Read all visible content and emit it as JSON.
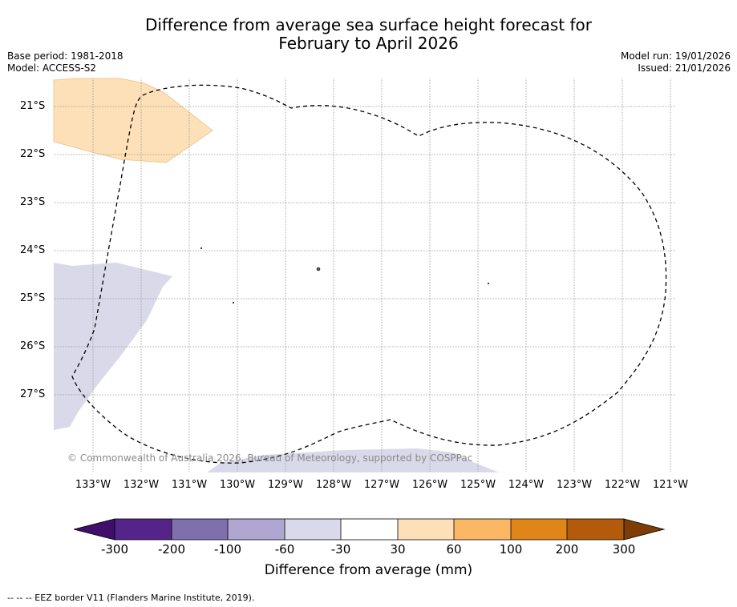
{
  "title": {
    "line1": "Difference from average sea surface height forecast for",
    "line2": "February to April 2026"
  },
  "meta": {
    "base_period": "Base period: 1981-2018",
    "model": "Model: ACCESS-S2",
    "model_run": "Model run: 19/01/2026",
    "issued": "Issued: 21/01/2026"
  },
  "map": {
    "lat_labels": [
      "21°S",
      "22°S",
      "23°S",
      "24°S",
      "25°S",
      "26°S",
      "27°S"
    ],
    "lon_labels": [
      "133°W",
      "132°W",
      "131°W",
      "130°W",
      "129°W",
      "128°W",
      "127°W",
      "126°W",
      "125°W",
      "124°W",
      "123°W",
      "122°W",
      "121°W"
    ],
    "copyright": "© Commonwealth of Australia 2026, Bureau of Meteorology, supported by COSPPac",
    "region_colors": {
      "positive_30_60": "#fde0b8",
      "negative_60_30": "#d9d9ea"
    },
    "eez_line_color": "#000000"
  },
  "colorbar": {
    "ticks": [
      "-300",
      "-200",
      "-100",
      "-60",
      "-30",
      "30",
      "60",
      "100",
      "200",
      "300"
    ],
    "colors": [
      "#3f0f6b",
      "#54248a",
      "#7f6fad",
      "#afa7d1",
      "#d9d9ea",
      "#ffffff",
      "#fde0b8",
      "#fbb763",
      "#e08619",
      "#b35a0b",
      "#7e3d06"
    ],
    "label": "Difference from average (mm)"
  },
  "footnote": "--  --  -- EEZ border V11 (Flanders Marine Institute, 2019)."
}
